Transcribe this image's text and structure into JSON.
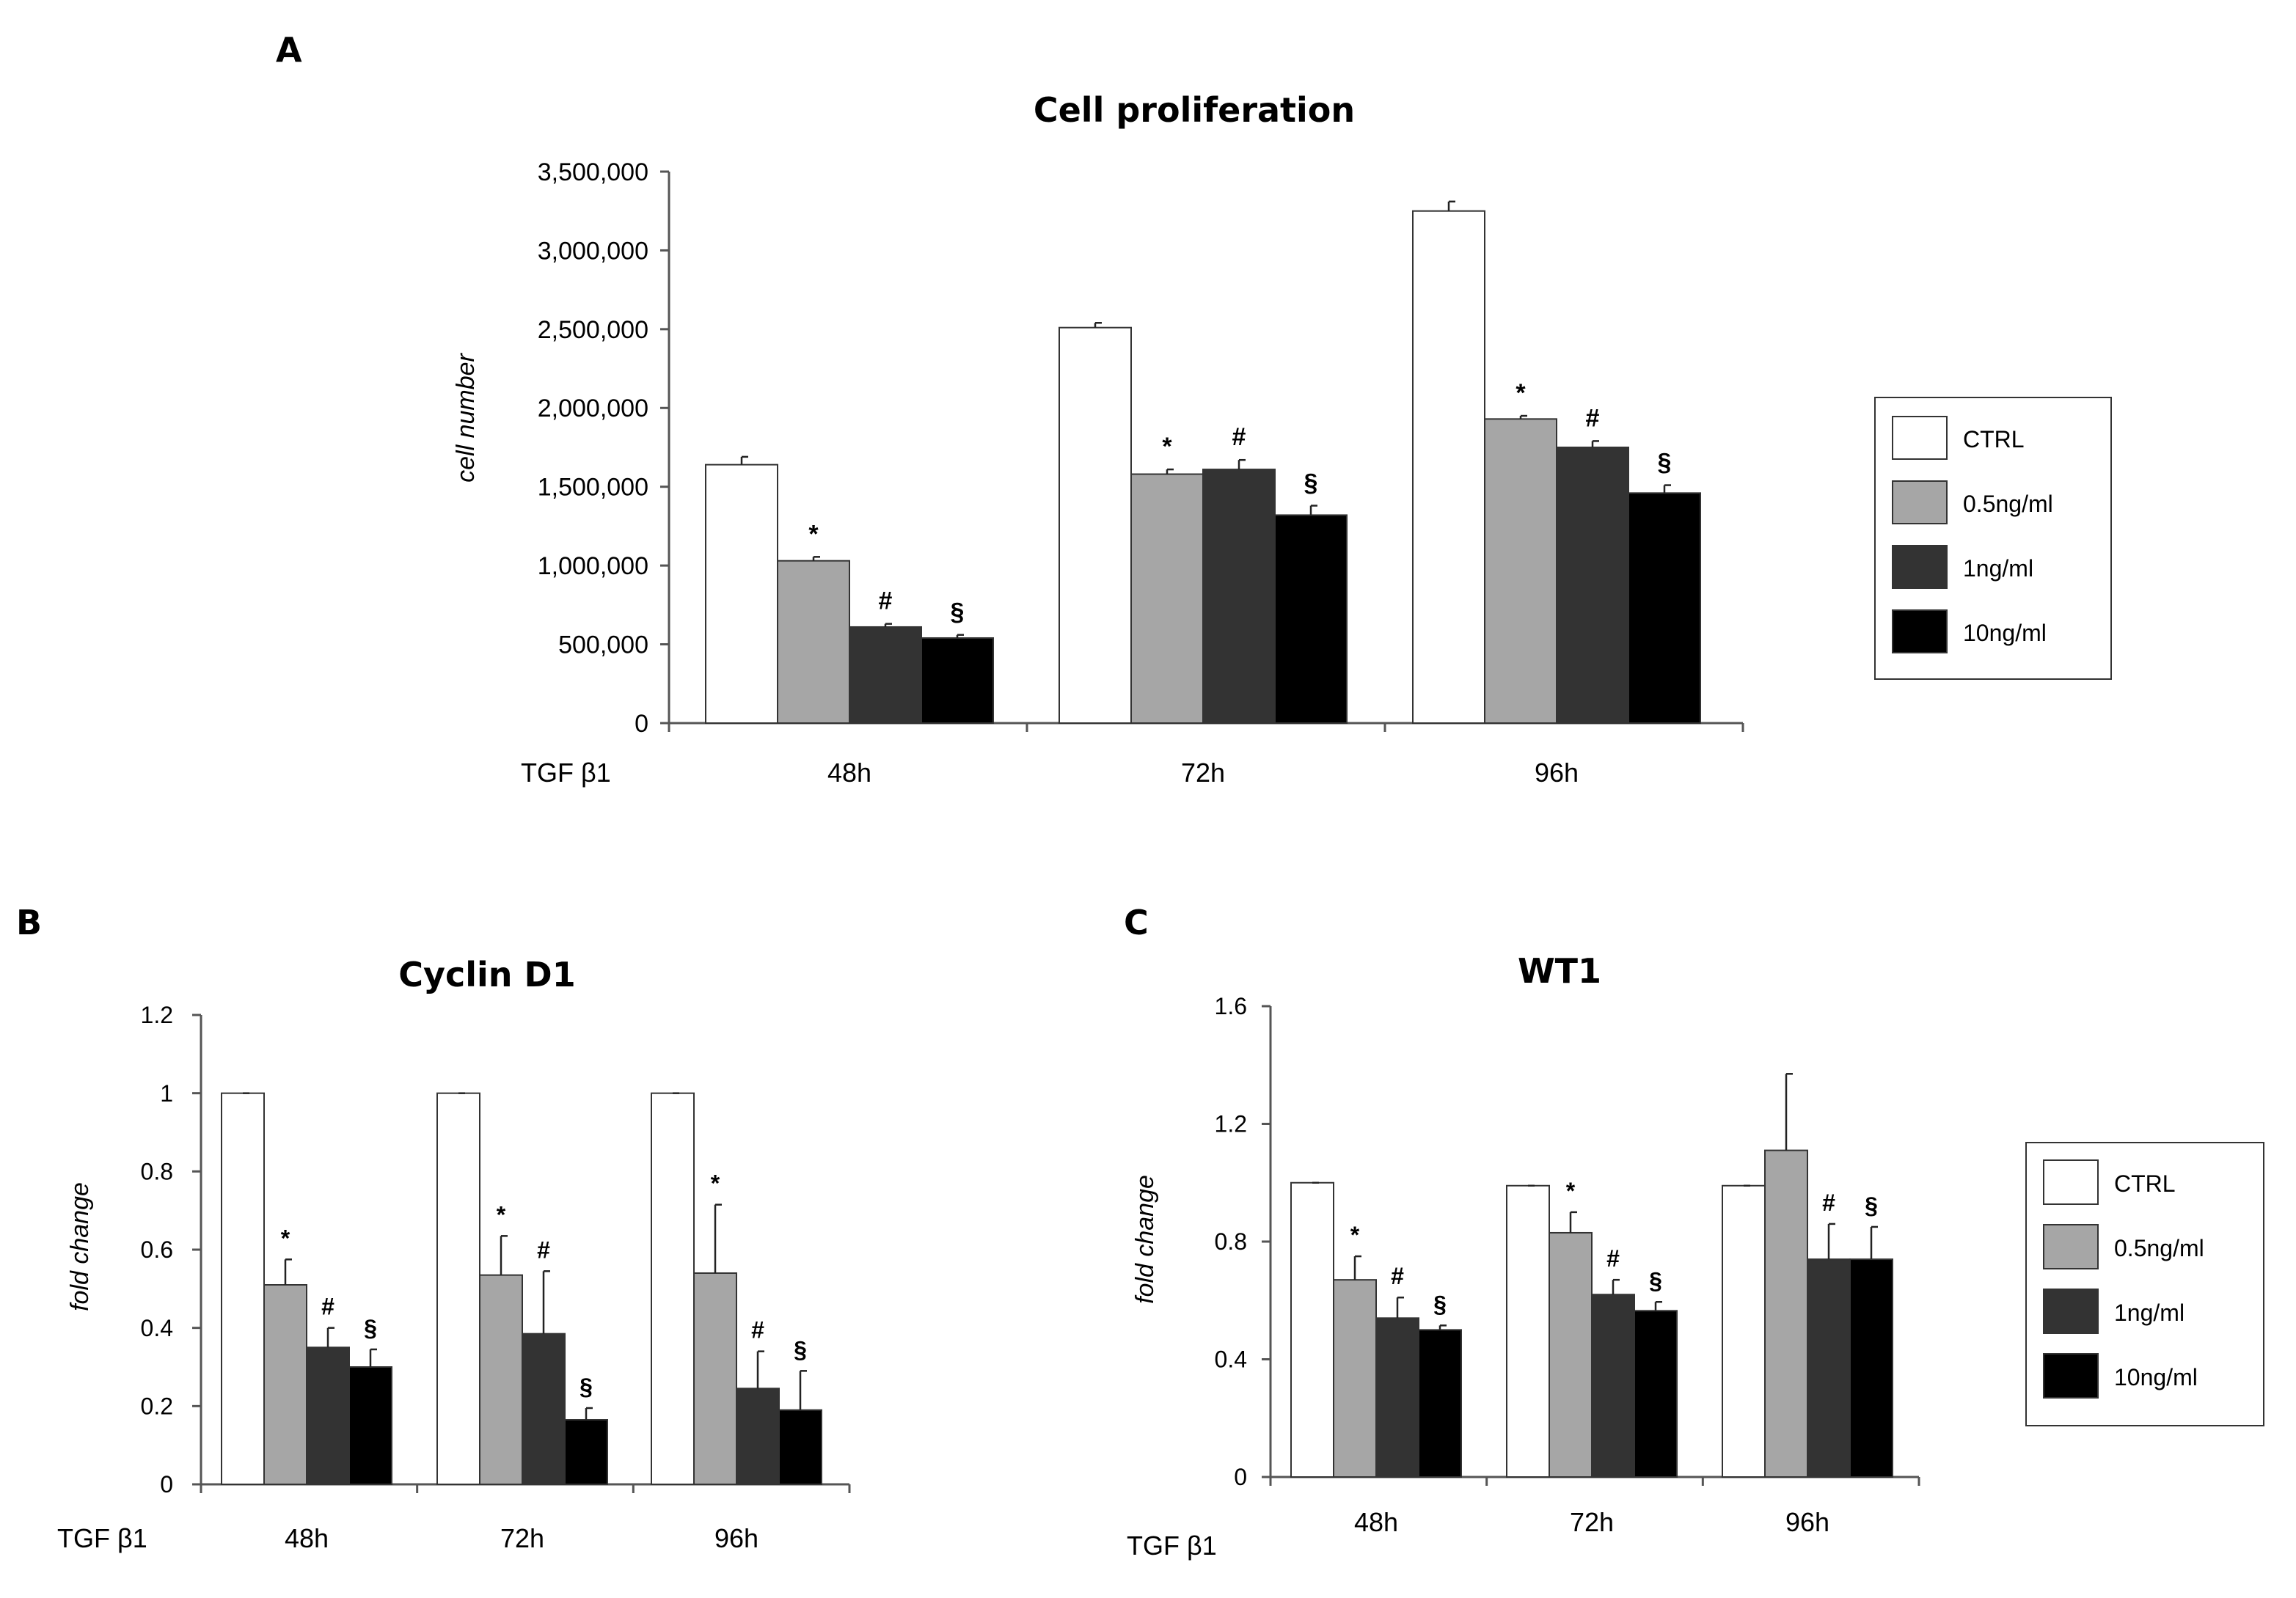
{
  "panels": {
    "a": {
      "letter": "A"
    },
    "b": {
      "letter": "B"
    },
    "c": {
      "letter": "C"
    }
  },
  "chart_data": [
    {
      "type": "bar",
      "title": "Cell proliferation",
      "ylabel": "cell number",
      "xlabel": "TGF β1",
      "categories": [
        "48h",
        "72h",
        "96h"
      ],
      "ylim": [
        0,
        3500000
      ],
      "yticks": [
        "0",
        "500,000",
        "1,000,000",
        "1,500,000",
        "2,000,000",
        "2,500,000",
        "3,000,000",
        "3,500,000"
      ],
      "grid": false,
      "legend_position": "right",
      "series": [
        {
          "name": "CTRL",
          "color": "#ffffff",
          "values": [
            1640000,
            2510000,
            3250000
          ],
          "errors": [
            50000,
            30000,
            60000
          ],
          "sig": [
            "",
            "",
            ""
          ]
        },
        {
          "name": "0.5ng/ml",
          "color": "#a6a6a6",
          "values": [
            1030000,
            1580000,
            1930000
          ],
          "errors": [
            25000,
            30000,
            20000
          ],
          "sig": [
            "*",
            "*",
            "*"
          ]
        },
        {
          "name": "1ng/ml",
          "color": "#333333",
          "values": [
            610000,
            1610000,
            1750000
          ],
          "errors": [
            20000,
            60000,
            40000
          ],
          "sig": [
            "#",
            "#",
            "#"
          ]
        },
        {
          "name": "10ng/ml",
          "color": "#000000",
          "values": [
            540000,
            1320000,
            1460000
          ],
          "errors": [
            20000,
            60000,
            50000
          ],
          "sig": [
            "§",
            "§",
            "§"
          ]
        }
      ]
    },
    {
      "type": "bar",
      "title": "Cyclin D1",
      "ylabel": "fold change",
      "xlabel": "TGF β1",
      "categories": [
        "48h",
        "72h",
        "96h"
      ],
      "ylim": [
        0,
        1.2
      ],
      "yticks": [
        "0",
        "0.2",
        "0.4",
        "0.6",
        "0.8",
        "1",
        "1.2"
      ],
      "grid": false,
      "series": [
        {
          "name": "CTRL",
          "color": "#ffffff",
          "values": [
            1.0,
            1.0,
            1.0
          ],
          "errors": [
            0,
            0,
            0
          ],
          "sig": [
            "",
            "",
            ""
          ]
        },
        {
          "name": "0.5ng/ml",
          "color": "#a6a6a6",
          "values": [
            0.51,
            0.535,
            0.54
          ],
          "errors": [
            0.065,
            0.1,
            0.175
          ],
          "sig": [
            "*",
            "*",
            "*"
          ]
        },
        {
          "name": "1ng/ml",
          "color": "#333333",
          "values": [
            0.35,
            0.385,
            0.245
          ],
          "errors": [
            0.05,
            0.16,
            0.095
          ],
          "sig": [
            "#",
            "#",
            "#"
          ]
        },
        {
          "name": "10ng/ml",
          "color": "#000000",
          "values": [
            0.3,
            0.165,
            0.19
          ],
          "errors": [
            0.045,
            0.03,
            0.1
          ],
          "sig": [
            "§",
            "§",
            "§"
          ]
        }
      ]
    },
    {
      "type": "bar",
      "title": "WT1",
      "ylabel": "fold change",
      "xlabel": "TGF β1",
      "categories": [
        "48h",
        "72h",
        "96h"
      ],
      "ylim": [
        0,
        1.6
      ],
      "yticks": [
        "0",
        "0.4",
        "0.8",
        "1.2",
        "1.6"
      ],
      "grid": false,
      "legend_position": "right",
      "series": [
        {
          "name": "CTRL",
          "color": "#ffffff",
          "values": [
            1.0,
            0.99,
            0.99
          ],
          "errors": [
            0,
            0,
            0
          ],
          "sig": [
            "",
            "",
            ""
          ]
        },
        {
          "name": "0.5ng/ml",
          "color": "#a6a6a6",
          "values": [
            0.67,
            0.83,
            1.11
          ],
          "errors": [
            0.08,
            0.07,
            0.26
          ],
          "sig": [
            "*",
            "*",
            ""
          ]
        },
        {
          "name": "1ng/ml",
          "color": "#333333",
          "values": [
            0.54,
            0.62,
            0.74
          ],
          "errors": [
            0.07,
            0.05,
            0.12
          ],
          "sig": [
            "#",
            "#",
            "#"
          ]
        },
        {
          "name": "10ng/ml",
          "color": "#000000",
          "values": [
            0.5,
            0.565,
            0.74
          ],
          "errors": [
            0.015,
            0.03,
            0.11
          ],
          "sig": [
            "§",
            "§",
            "§"
          ]
        }
      ]
    }
  ]
}
